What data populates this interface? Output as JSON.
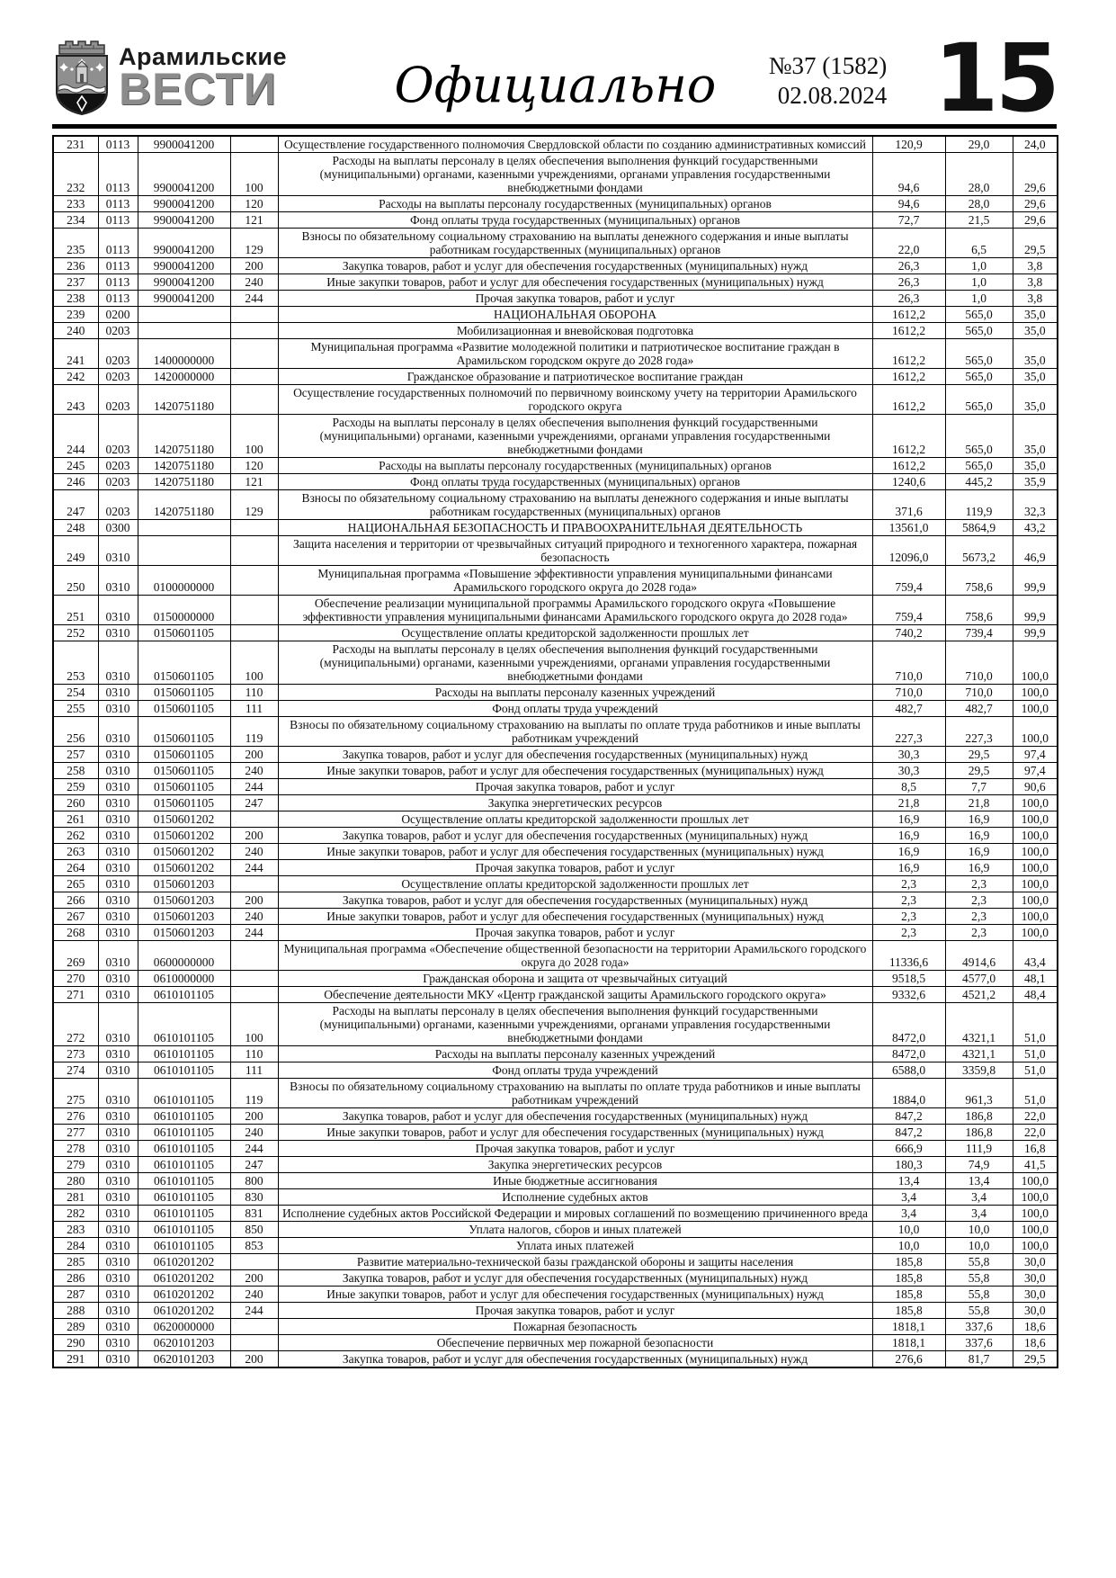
{
  "masthead": {
    "newspaper_name_line1": "Арамильские",
    "newspaper_name_line2": "ВЕСТИ",
    "emblem": "aramil-coat-of-arms-icon",
    "section_title": "Официально",
    "issue_number": "№37 (1582)",
    "issue_date": "02.08.2024",
    "page_number": "15",
    "accent_gray": "#8b8b8b"
  },
  "table": {
    "rows": [
      {
        "num": "231",
        "rz": "0113",
        "csr": "9900041200",
        "vr": "",
        "name": "Осуществление государственного полномочия Свердловской области по созданию административных комиссий",
        "v1": "120,9",
        "v2": "29,0",
        "v3": "24,0"
      },
      {
        "num": "232",
        "rz": "0113",
        "csr": "9900041200",
        "vr": "100",
        "name": "Расходы на выплаты персоналу в целях обеспечения выполнения функций государственными (муниципальными) органами, казенными учреждениями, органами управления государственными внебюджетными фондами",
        "v1": "94,6",
        "v2": "28,0",
        "v3": "29,6"
      },
      {
        "num": "233",
        "rz": "0113",
        "csr": "9900041200",
        "vr": "120",
        "name": "Расходы на выплаты персоналу государственных (муниципальных) органов",
        "v1": "94,6",
        "v2": "28,0",
        "v3": "29,6"
      },
      {
        "num": "234",
        "rz": "0113",
        "csr": "9900041200",
        "vr": "121",
        "name": "Фонд оплаты труда государственных (муниципальных) органов",
        "v1": "72,7",
        "v2": "21,5",
        "v3": "29,6"
      },
      {
        "num": "235",
        "rz": "0113",
        "csr": "9900041200",
        "vr": "129",
        "name": "Взносы по обязательному социальному страхованию на выплаты денежного содержания и иные выплаты работникам государственных (муниципальных) органов",
        "v1": "22,0",
        "v2": "6,5",
        "v3": "29,5"
      },
      {
        "num": "236",
        "rz": "0113",
        "csr": "9900041200",
        "vr": "200",
        "name": "Закупка товаров, работ и услуг для обеспечения государственных (муниципальных) нужд",
        "v1": "26,3",
        "v2": "1,0",
        "v3": "3,8"
      },
      {
        "num": "237",
        "rz": "0113",
        "csr": "9900041200",
        "vr": "240",
        "name": "Иные закупки товаров, работ и услуг для обеспечения государственных (муниципальных) нужд",
        "v1": "26,3",
        "v2": "1,0",
        "v3": "3,8"
      },
      {
        "num": "238",
        "rz": "0113",
        "csr": "9900041200",
        "vr": "244",
        "name": "Прочая закупка товаров, работ и услуг",
        "v1": "26,3",
        "v2": "1,0",
        "v3": "3,8"
      },
      {
        "num": "239",
        "rz": "0200",
        "csr": "",
        "vr": "",
        "name": "НАЦИОНАЛЬНАЯ ОБОРОНА",
        "v1": "1612,2",
        "v2": "565,0",
        "v3": "35,0"
      },
      {
        "num": "240",
        "rz": "0203",
        "csr": "",
        "vr": "",
        "name": "Мобилизационная и вневойсковая подготовка",
        "v1": "1612,2",
        "v2": "565,0",
        "v3": "35,0"
      },
      {
        "num": "241",
        "rz": "0203",
        "csr": "1400000000",
        "vr": "",
        "name": "Муниципальная программа «Развитие молодежной политики и патриотическое воспитание граждан в Арамильском городском округе до 2028 года»",
        "v1": "1612,2",
        "v2": "565,0",
        "v3": "35,0"
      },
      {
        "num": "242",
        "rz": "0203",
        "csr": "1420000000",
        "vr": "",
        "name": "Гражданское образование и патриотическое воспитание граждан",
        "v1": "1612,2",
        "v2": "565,0",
        "v3": "35,0"
      },
      {
        "num": "243",
        "rz": "0203",
        "csr": "1420751180",
        "vr": "",
        "name": "Осуществление государственных полномочий по первичному воинскому учету на территории Арамильского городского округа",
        "v1": "1612,2",
        "v2": "565,0",
        "v3": "35,0"
      },
      {
        "num": "244",
        "rz": "0203",
        "csr": "1420751180",
        "vr": "100",
        "name": "Расходы на выплаты персоналу в целях обеспечения выполнения функций государственными (муниципальными) органами, казенными учреждениями, органами управления государственными внебюджетными фондами",
        "v1": "1612,2",
        "v2": "565,0",
        "v3": "35,0"
      },
      {
        "num": "245",
        "rz": "0203",
        "csr": "1420751180",
        "vr": "120",
        "name": "Расходы на выплаты персоналу государственных (муниципальных) органов",
        "v1": "1612,2",
        "v2": "565,0",
        "v3": "35,0"
      },
      {
        "num": "246",
        "rz": "0203",
        "csr": "1420751180",
        "vr": "121",
        "name": "Фонд оплаты труда государственных (муниципальных) органов",
        "v1": "1240,6",
        "v2": "445,2",
        "v3": "35,9"
      },
      {
        "num": "247",
        "rz": "0203",
        "csr": "1420751180",
        "vr": "129",
        "name": "Взносы по обязательному социальному страхованию на выплаты денежного содержания и иные выплаты работникам государственных (муниципальных) органов",
        "v1": "371,6",
        "v2": "119,9",
        "v3": "32,3"
      },
      {
        "num": "248",
        "rz": "0300",
        "csr": "",
        "vr": "",
        "name": "НАЦИОНАЛЬНАЯ БЕЗОПАСНОСТЬ И ПРАВООХРАНИТЕЛЬНАЯ ДЕЯТЕЛЬНОСТЬ",
        "v1": "13561,0",
        "v2": "5864,9",
        "v3": "43,2"
      },
      {
        "num": "249",
        "rz": "0310",
        "csr": "",
        "vr": "",
        "name": "Защита населения и территории от чрезвычайных ситуаций природного и техногенного характера, пожарная безопасность",
        "v1": "12096,0",
        "v2": "5673,2",
        "v3": "46,9"
      },
      {
        "num": "250",
        "rz": "0310",
        "csr": "0100000000",
        "vr": "",
        "name": "Муниципальная программа «Повышение эффективности управления муниципальными финансами Арамильского городского округа до 2028 года»",
        "v1": "759,4",
        "v2": "758,6",
        "v3": "99,9"
      },
      {
        "num": "251",
        "rz": "0310",
        "csr": "0150000000",
        "vr": "",
        "name": "Обеспечение реализации муниципальной программы Арамильского городского округа «Повышение эффективности управления муниципальными финансами Арамильского городского округа до 2028 года»",
        "v1": "759,4",
        "v2": "758,6",
        "v3": "99,9"
      },
      {
        "num": "252",
        "rz": "0310",
        "csr": "0150601105",
        "vr": "",
        "name": "Осуществление оплаты кредиторской задолженности прошлых лет",
        "v1": "740,2",
        "v2": "739,4",
        "v3": "99,9"
      },
      {
        "num": "253",
        "rz": "0310",
        "csr": "0150601105",
        "vr": "100",
        "name": "Расходы на выплаты персоналу в целях обеспечения выполнения функций государственными (муниципальными) органами, казенными учреждениями, органами управления государственными внебюджетными фондами",
        "v1": "710,0",
        "v2": "710,0",
        "v3": "100,0"
      },
      {
        "num": "254",
        "rz": "0310",
        "csr": "0150601105",
        "vr": "110",
        "name": "Расходы на выплаты персоналу казенных учреждений",
        "v1": "710,0",
        "v2": "710,0",
        "v3": "100,0"
      },
      {
        "num": "255",
        "rz": "0310",
        "csr": "0150601105",
        "vr": "111",
        "name": "Фонд оплаты труда учреждений",
        "v1": "482,7",
        "v2": "482,7",
        "v3": "100,0"
      },
      {
        "num": "256",
        "rz": "0310",
        "csr": "0150601105",
        "vr": "119",
        "name": "Взносы по обязательному социальному страхованию на выплаты по оплате труда работников и иные выплаты работникам учреждений",
        "v1": "227,3",
        "v2": "227,3",
        "v3": "100,0"
      },
      {
        "num": "257",
        "rz": "0310",
        "csr": "0150601105",
        "vr": "200",
        "name": "Закупка товаров, работ и услуг для обеспечения государственных (муниципальных) нужд",
        "v1": "30,3",
        "v2": "29,5",
        "v3": "97,4"
      },
      {
        "num": "258",
        "rz": "0310",
        "csr": "0150601105",
        "vr": "240",
        "name": "Иные закупки товаров, работ и услуг для обеспечения государственных (муниципальных) нужд",
        "v1": "30,3",
        "v2": "29,5",
        "v3": "97,4"
      },
      {
        "num": "259",
        "rz": "0310",
        "csr": "0150601105",
        "vr": "244",
        "name": "Прочая закупка товаров, работ и услуг",
        "v1": "8,5",
        "v2": "7,7",
        "v3": "90,6"
      },
      {
        "num": "260",
        "rz": "0310",
        "csr": "0150601105",
        "vr": "247",
        "name": "Закупка энергетических ресурсов",
        "v1": "21,8",
        "v2": "21,8",
        "v3": "100,0"
      },
      {
        "num": "261",
        "rz": "0310",
        "csr": "0150601202",
        "vr": "",
        "name": "Осуществление оплаты кредиторской задолженности прошлых лет",
        "v1": "16,9",
        "v2": "16,9",
        "v3": "100,0"
      },
      {
        "num": "262",
        "rz": "0310",
        "csr": "0150601202",
        "vr": "200",
        "name": "Закупка товаров, работ и услуг для обеспечения государственных (муниципальных) нужд",
        "v1": "16,9",
        "v2": "16,9",
        "v3": "100,0"
      },
      {
        "num": "263",
        "rz": "0310",
        "csr": "0150601202",
        "vr": "240",
        "name": "Иные закупки товаров, работ и услуг для обеспечения государственных (муниципальных) нужд",
        "v1": "16,9",
        "v2": "16,9",
        "v3": "100,0"
      },
      {
        "num": "264",
        "rz": "0310",
        "csr": "0150601202",
        "vr": "244",
        "name": "Прочая закупка товаров, работ и услуг",
        "v1": "16,9",
        "v2": "16,9",
        "v3": "100,0"
      },
      {
        "num": "265",
        "rz": "0310",
        "csr": "0150601203",
        "vr": "",
        "name": "Осуществление оплаты кредиторской задолженности прошлых лет",
        "v1": "2,3",
        "v2": "2,3",
        "v3": "100,0"
      },
      {
        "num": "266",
        "rz": "0310",
        "csr": "0150601203",
        "vr": "200",
        "name": "Закупка товаров, работ и услуг для обеспечения государственных (муниципальных) нужд",
        "v1": "2,3",
        "v2": "2,3",
        "v3": "100,0"
      },
      {
        "num": "267",
        "rz": "0310",
        "csr": "0150601203",
        "vr": "240",
        "name": "Иные закупки товаров, работ и услуг для обеспечения государственных (муниципальных) нужд",
        "v1": "2,3",
        "v2": "2,3",
        "v3": "100,0"
      },
      {
        "num": "268",
        "rz": "0310",
        "csr": "0150601203",
        "vr": "244",
        "name": "Прочая закупка товаров, работ и услуг",
        "v1": "2,3",
        "v2": "2,3",
        "v3": "100,0"
      },
      {
        "num": "269",
        "rz": "0310",
        "csr": "0600000000",
        "vr": "",
        "name": "Муниципальная программа «Обеспечение общественной безопасности на территории Арамильского городского округа до 2028 года»",
        "v1": "11336,6",
        "v2": "4914,6",
        "v3": "43,4"
      },
      {
        "num": "270",
        "rz": "0310",
        "csr": "0610000000",
        "vr": "",
        "name": "Гражданская оборона и защита от чрезвычайных ситуаций",
        "v1": "9518,5",
        "v2": "4577,0",
        "v3": "48,1"
      },
      {
        "num": "271",
        "rz": "0310",
        "csr": "0610101105",
        "vr": "",
        "name": "Обеспечение деятельности МКУ «Центр гражданской защиты Арамильского городского округа»",
        "v1": "9332,6",
        "v2": "4521,2",
        "v3": "48,4"
      },
      {
        "num": "272",
        "rz": "0310",
        "csr": "0610101105",
        "vr": "100",
        "name": "Расходы на выплаты персоналу в целях обеспечения выполнения функций государственными (муниципальными) органами, казенными учреждениями, органами управления государственными внебюджетными фондами",
        "v1": "8472,0",
        "v2": "4321,1",
        "v3": "51,0"
      },
      {
        "num": "273",
        "rz": "0310",
        "csr": "0610101105",
        "vr": "110",
        "name": "Расходы на выплаты персоналу казенных учреждений",
        "v1": "8472,0",
        "v2": "4321,1",
        "v3": "51,0"
      },
      {
        "num": "274",
        "rz": "0310",
        "csr": "0610101105",
        "vr": "111",
        "name": "Фонд оплаты труда учреждений",
        "v1": "6588,0",
        "v2": "3359,8",
        "v3": "51,0"
      },
      {
        "num": "275",
        "rz": "0310",
        "csr": "0610101105",
        "vr": "119",
        "name": "Взносы по обязательному социальному страхованию на выплаты по оплате труда работников и иные выплаты работникам учреждений",
        "v1": "1884,0",
        "v2": "961,3",
        "v3": "51,0"
      },
      {
        "num": "276",
        "rz": "0310",
        "csr": "0610101105",
        "vr": "200",
        "name": "Закупка товаров, работ и услуг для обеспечения государственных (муниципальных) нужд",
        "v1": "847,2",
        "v2": "186,8",
        "v3": "22,0"
      },
      {
        "num": "277",
        "rz": "0310",
        "csr": "0610101105",
        "vr": "240",
        "name": "Иные закупки товаров, работ и услуг для обеспечения государственных (муниципальных) нужд",
        "v1": "847,2",
        "v2": "186,8",
        "v3": "22,0"
      },
      {
        "num": "278",
        "rz": "0310",
        "csr": "0610101105",
        "vr": "244",
        "name": "Прочая закупка товаров, работ и услуг",
        "v1": "666,9",
        "v2": "111,9",
        "v3": "16,8"
      },
      {
        "num": "279",
        "rz": "0310",
        "csr": "0610101105",
        "vr": "247",
        "name": "Закупка энергетических ресурсов",
        "v1": "180,3",
        "v2": "74,9",
        "v3": "41,5"
      },
      {
        "num": "280",
        "rz": "0310",
        "csr": "0610101105",
        "vr": "800",
        "name": "Иные бюджетные ассигнования",
        "v1": "13,4",
        "v2": "13,4",
        "v3": "100,0"
      },
      {
        "num": "281",
        "rz": "0310",
        "csr": "0610101105",
        "vr": "830",
        "name": "Исполнение судебных актов",
        "v1": "3,4",
        "v2": "3,4",
        "v3": "100,0"
      },
      {
        "num": "282",
        "rz": "0310",
        "csr": "0610101105",
        "vr": "831",
        "name": "Исполнение судебных актов Российской Федерации и мировых соглашений по возмещению причиненного вреда",
        "v1": "3,4",
        "v2": "3,4",
        "v3": "100,0"
      },
      {
        "num": "283",
        "rz": "0310",
        "csr": "0610101105",
        "vr": "850",
        "name": "Уплата налогов, сборов и иных платежей",
        "v1": "10,0",
        "v2": "10,0",
        "v3": "100,0"
      },
      {
        "num": "284",
        "rz": "0310",
        "csr": "0610101105",
        "vr": "853",
        "name": "Уплата иных платежей",
        "v1": "10,0",
        "v2": "10,0",
        "v3": "100,0"
      },
      {
        "num": "285",
        "rz": "0310",
        "csr": "0610201202",
        "vr": "",
        "name": "Развитие материально-технической базы гражданской обороны и защиты населения",
        "v1": "185,8",
        "v2": "55,8",
        "v3": "30,0"
      },
      {
        "num": "286",
        "rz": "0310",
        "csr": "0610201202",
        "vr": "200",
        "name": "Закупка товаров, работ и услуг для обеспечения государственных (муниципальных) нужд",
        "v1": "185,8",
        "v2": "55,8",
        "v3": "30,0"
      },
      {
        "num": "287",
        "rz": "0310",
        "csr": "0610201202",
        "vr": "240",
        "name": "Иные закупки товаров, работ и услуг для обеспечения государственных (муниципальных) нужд",
        "v1": "185,8",
        "v2": "55,8",
        "v3": "30,0"
      },
      {
        "num": "288",
        "rz": "0310",
        "csr": "0610201202",
        "vr": "244",
        "name": "Прочая закупка товаров, работ и услуг",
        "v1": "185,8",
        "v2": "55,8",
        "v3": "30,0"
      },
      {
        "num": "289",
        "rz": "0310",
        "csr": "0620000000",
        "vr": "",
        "name": "Пожарная безопасность",
        "v1": "1818,1",
        "v2": "337,6",
        "v3": "18,6"
      },
      {
        "num": "290",
        "rz": "0310",
        "csr": "0620101203",
        "vr": "",
        "name": "Обеспечение первичных мер пожарной безопасности",
        "v1": "1818,1",
        "v2": "337,6",
        "v3": "18,6"
      },
      {
        "num": "291",
        "rz": "0310",
        "csr": "0620101203",
        "vr": "200",
        "name": "Закупка товаров, работ и услуг для обеспечения государственных (муниципальных) нужд",
        "v1": "276,6",
        "v2": "81,7",
        "v3": "29,5"
      }
    ]
  }
}
